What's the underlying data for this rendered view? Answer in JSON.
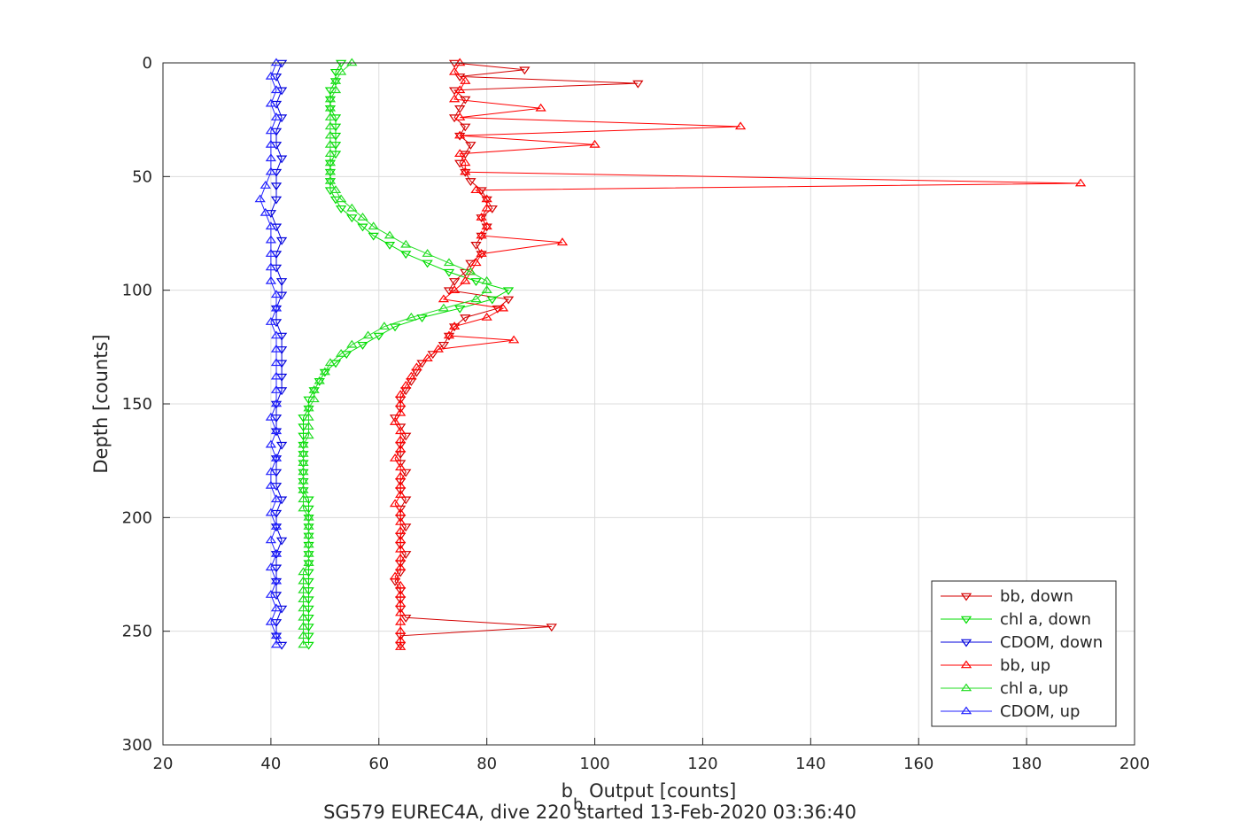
{
  "chart_data": {
    "type": "scatter",
    "xlabel_main": "b",
    "xlabel_sub": "b",
    "xlabel_rest": " Output [counts]",
    "ylabel": "Depth [counts]",
    "caption": "SG579 EUREC4A, dive 220 started 13-Feb-2020 03:36:40",
    "xlim": [
      20,
      200
    ],
    "ylim": [
      0,
      300
    ],
    "y_reversed": true,
    "grid": true,
    "legend_position": "bottom-right",
    "xticks": [
      "20",
      "40",
      "60",
      "80",
      "100",
      "120",
      "140",
      "160",
      "180",
      "200"
    ],
    "yticks": [
      "0",
      "50",
      "100",
      "150",
      "200",
      "250",
      "300"
    ],
    "series": [
      {
        "name": "bb, down",
        "color": "#d40000",
        "marker": "triangle-down",
        "depth": [
          0,
          3,
          6,
          9,
          12,
          16,
          20,
          24,
          28,
          32,
          36,
          40,
          44,
          48,
          52,
          56,
          60,
          64,
          68,
          72,
          76,
          80,
          84,
          88,
          92,
          96,
          100,
          104,
          108,
          112,
          116,
          120,
          124,
          128,
          132,
          136,
          140,
          144,
          148,
          152,
          156,
          160,
          164,
          168,
          172,
          176,
          180,
          184,
          188,
          192,
          196,
          200,
          204,
          208,
          212,
          216,
          220,
          224,
          228,
          232,
          236,
          240,
          244,
          248,
          252,
          256
        ],
        "x": [
          74,
          87,
          75,
          108,
          74,
          76,
          75,
          74,
          76,
          75,
          77,
          76,
          75,
          76,
          77,
          79,
          80,
          81,
          79,
          80,
          79,
          78,
          79,
          77,
          76,
          74,
          73,
          84,
          82,
          76,
          74,
          73,
          72,
          70,
          68,
          67,
          66,
          65,
          64,
          64,
          63,
          64,
          65,
          64,
          64,
          64,
          65,
          64,
          64,
          65,
          64,
          64,
          65,
          64,
          64,
          65,
          64,
          64,
          63,
          64,
          64,
          64,
          65,
          92,
          64,
          64
        ]
      },
      {
        "name": "chl a, down",
        "color": "#00dd00",
        "marker": "triangle-down",
        "depth": [
          0,
          4,
          8,
          12,
          16,
          20,
          24,
          28,
          32,
          36,
          40,
          44,
          48,
          52,
          56,
          60,
          64,
          68,
          72,
          76,
          80,
          84,
          88,
          92,
          96,
          100,
          104,
          108,
          112,
          116,
          120,
          124,
          128,
          132,
          136,
          140,
          144,
          148,
          152,
          156,
          160,
          164,
          168,
          172,
          176,
          180,
          184,
          188,
          192,
          196,
          200,
          204,
          208,
          212,
          216,
          220,
          224,
          228,
          232,
          236,
          240,
          244,
          248,
          252,
          256
        ],
        "x": [
          53,
          52,
          52,
          51,
          51,
          51,
          52,
          52,
          52,
          52,
          52,
          51,
          51,
          51,
          51,
          52,
          53,
          55,
          57,
          59,
          62,
          65,
          69,
          73,
          78,
          84,
          81,
          75,
          68,
          63,
          60,
          57,
          54,
          52,
          50,
          49,
          48,
          47,
          47,
          46,
          46,
          46,
          46,
          46,
          46,
          46,
          46,
          46,
          47,
          47,
          47,
          47,
          47,
          47,
          47,
          47,
          47,
          47,
          47,
          47,
          47,
          47,
          47,
          47,
          47
        ]
      },
      {
        "name": "CDOM, down",
        "color": "#0000dd",
        "marker": "triangle-down",
        "depth": [
          0,
          6,
          12,
          18,
          24,
          30,
          36,
          42,
          48,
          54,
          60,
          66,
          72,
          78,
          84,
          90,
          96,
          102,
          108,
          114,
          120,
          126,
          132,
          138,
          144,
          150,
          156,
          162,
          168,
          174,
          180,
          186,
          192,
          198,
          204,
          210,
          216,
          222,
          228,
          234,
          240,
          246,
          252,
          256
        ],
        "x": [
          42,
          41,
          42,
          41,
          42,
          41,
          41,
          42,
          41,
          41,
          41,
          40,
          41,
          42,
          41,
          41,
          42,
          42,
          41,
          41,
          42,
          42,
          42,
          42,
          42,
          41,
          41,
          41,
          42,
          41,
          41,
          41,
          42,
          41,
          41,
          42,
          41,
          41,
          41,
          41,
          42,
          41,
          41,
          42
        ]
      },
      {
        "name": "bb, up",
        "color": "#ff0000",
        "marker": "triangle-up",
        "depth": [
          0,
          4,
          8,
          12,
          16,
          20,
          24,
          28,
          32,
          36,
          40,
          44,
          48,
          53,
          56,
          60,
          64,
          68,
          72,
          76,
          79,
          84,
          88,
          92,
          96,
          100,
          104,
          108,
          112,
          116,
          120,
          122,
          126,
          130,
          134,
          138,
          142,
          146,
          150,
          154,
          158,
          162,
          166,
          170,
          174,
          178,
          182,
          186,
          190,
          194,
          198,
          202,
          206,
          210,
          214,
          218,
          222,
          226,
          230,
          234,
          238,
          242,
          246,
          250,
          254,
          257
        ],
        "x": [
          75,
          74,
          76,
          75,
          74,
          90,
          75,
          127,
          75,
          100,
          75,
          76,
          76,
          190,
          78,
          80,
          80,
          79,
          80,
          79,
          94,
          79,
          78,
          77,
          76,
          74,
          72,
          83,
          80,
          74,
          73,
          85,
          71,
          69,
          67,
          66,
          65,
          64,
          64,
          64,
          63,
          64,
          64,
          64,
          63,
          64,
          64,
          64,
          64,
          63,
          64,
          64,
          64,
          64,
          64,
          64,
          64,
          63,
          64,
          64,
          64,
          64,
          64,
          64,
          64,
          64
        ]
      },
      {
        "name": "chl a, up",
        "color": "#22dd22",
        "marker": "triangle-up",
        "depth": [
          0,
          4,
          8,
          12,
          16,
          20,
          24,
          28,
          32,
          36,
          40,
          44,
          48,
          52,
          56,
          60,
          64,
          68,
          72,
          76,
          80,
          84,
          88,
          92,
          96,
          100,
          104,
          108,
          112,
          116,
          120,
          124,
          128,
          132,
          136,
          140,
          144,
          148,
          152,
          156,
          160,
          164,
          168,
          172,
          176,
          180,
          184,
          188,
          192,
          196,
          200,
          204,
          208,
          212,
          216,
          220,
          224,
          228,
          232,
          236,
          240,
          244,
          248,
          252,
          256
        ],
        "x": [
          55,
          53,
          52,
          52,
          51,
          51,
          51,
          51,
          51,
          51,
          51,
          51,
          51,
          51,
          52,
          53,
          55,
          57,
          59,
          62,
          65,
          69,
          73,
          77,
          80,
          80,
          78,
          72,
          66,
          61,
          58,
          55,
          53,
          51,
          50,
          49,
          48,
          48,
          47,
          47,
          47,
          47,
          46,
          46,
          46,
          46,
          46,
          46,
          46,
          46,
          47,
          47,
          47,
          47,
          47,
          47,
          46,
          46,
          46,
          46,
          46,
          46,
          46,
          46,
          46
        ]
      },
      {
        "name": "CDOM, up",
        "color": "#2222ff",
        "marker": "triangle-up",
        "depth": [
          0,
          6,
          12,
          18,
          24,
          30,
          36,
          42,
          48,
          54,
          60,
          66,
          72,
          78,
          84,
          90,
          96,
          102,
          108,
          114,
          120,
          126,
          132,
          138,
          144,
          150,
          156,
          162,
          168,
          174,
          180,
          186,
          192,
          198,
          204,
          210,
          216,
          222,
          228,
          234,
          240,
          246,
          252,
          256
        ],
        "x": [
          41,
          40,
          41,
          40,
          41,
          40,
          40,
          40,
          40,
          39,
          38,
          39,
          40,
          40,
          40,
          40,
          40,
          41,
          41,
          40,
          41,
          41,
          41,
          41,
          41,
          41,
          40,
          41,
          40,
          41,
          40,
          40,
          41,
          40,
          41,
          40,
          41,
          40,
          41,
          40,
          41,
          40,
          41,
          41
        ]
      }
    ]
  }
}
